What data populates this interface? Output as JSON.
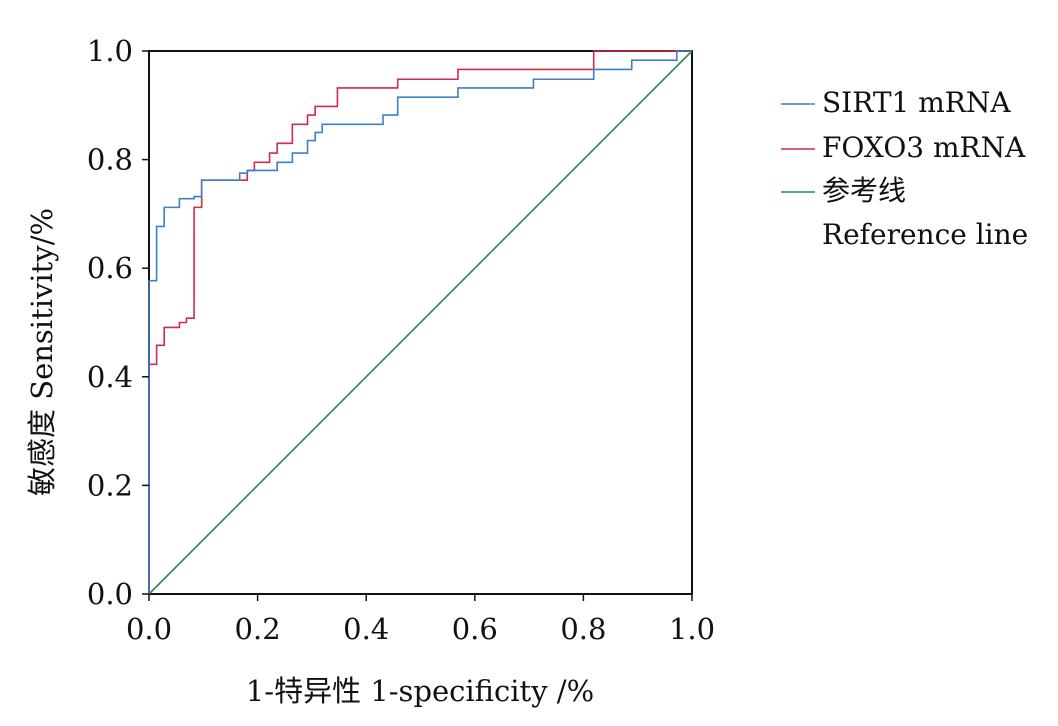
{
  "chart_data": {
    "type": "line",
    "title": "",
    "xlabel": "1-特异性 1-specificity /%",
    "ylabel": "敏感度 Sensitivity/%",
    "xlim": [
      0,
      1
    ],
    "ylim": [
      0,
      1
    ],
    "x_ticks": [
      "0.0",
      "0.2",
      "0.4",
      "0.6",
      "0.8",
      "1.0"
    ],
    "y_ticks": [
      "0.0",
      "0.2",
      "0.4",
      "0.6",
      "0.8",
      "1.0"
    ],
    "grid": false,
    "legend_position": "top-right outside",
    "series": [
      {
        "name": "SIRT1 mRNA",
        "color": "#3d7fc9",
        "points": [
          [
            0,
            0
          ],
          [
            0,
            0.577
          ],
          [
            0.014,
            0.577
          ],
          [
            0.014,
            0.677
          ],
          [
            0.028,
            0.677
          ],
          [
            0.028,
            0.712
          ],
          [
            0.056,
            0.712
          ],
          [
            0.056,
            0.728
          ],
          [
            0.083,
            0.728
          ],
          [
            0.083,
            0.732
          ],
          [
            0.097,
            0.732
          ],
          [
            0.097,
            0.762
          ],
          [
            0.167,
            0.762
          ],
          [
            0.167,
            0.775
          ],
          [
            0.181,
            0.775
          ],
          [
            0.181,
            0.78
          ],
          [
            0.236,
            0.78
          ],
          [
            0.236,
            0.795
          ],
          [
            0.264,
            0.795
          ],
          [
            0.264,
            0.812
          ],
          [
            0.292,
            0.812
          ],
          [
            0.292,
            0.835
          ],
          [
            0.306,
            0.835
          ],
          [
            0.306,
            0.85
          ],
          [
            0.319,
            0.85
          ],
          [
            0.319,
            0.865
          ],
          [
            0.431,
            0.865
          ],
          [
            0.431,
            0.882
          ],
          [
            0.458,
            0.882
          ],
          [
            0.458,
            0.915
          ],
          [
            0.569,
            0.915
          ],
          [
            0.569,
            0.932
          ],
          [
            0.708,
            0.932
          ],
          [
            0.708,
            0.948
          ],
          [
            0.819,
            0.948
          ],
          [
            0.819,
            0.966
          ],
          [
            0.889,
            0.966
          ],
          [
            0.889,
            0.983
          ],
          [
            0.972,
            0.983
          ],
          [
            0.972,
            1.0
          ],
          [
            1.0,
            1.0
          ]
        ]
      },
      {
        "name": "FOXO3 mRNA",
        "color": "#cc2d4c",
        "points": [
          [
            0,
            0
          ],
          [
            0,
            0.423
          ],
          [
            0.014,
            0.423
          ],
          [
            0.014,
            0.458
          ],
          [
            0.028,
            0.458
          ],
          [
            0.028,
            0.491
          ],
          [
            0.056,
            0.491
          ],
          [
            0.056,
            0.5
          ],
          [
            0.069,
            0.5
          ],
          [
            0.069,
            0.508
          ],
          [
            0.083,
            0.508
          ],
          [
            0.083,
            0.712
          ],
          [
            0.097,
            0.712
          ],
          [
            0.097,
            0.762
          ],
          [
            0.181,
            0.762
          ],
          [
            0.181,
            0.78
          ],
          [
            0.194,
            0.78
          ],
          [
            0.194,
            0.795
          ],
          [
            0.222,
            0.795
          ],
          [
            0.222,
            0.812
          ],
          [
            0.236,
            0.812
          ],
          [
            0.236,
            0.83
          ],
          [
            0.264,
            0.83
          ],
          [
            0.264,
            0.865
          ],
          [
            0.292,
            0.865
          ],
          [
            0.292,
            0.882
          ],
          [
            0.306,
            0.882
          ],
          [
            0.306,
            0.898
          ],
          [
            0.347,
            0.898
          ],
          [
            0.347,
            0.932
          ],
          [
            0.458,
            0.932
          ],
          [
            0.458,
            0.948
          ],
          [
            0.569,
            0.948
          ],
          [
            0.569,
            0.966
          ],
          [
            0.819,
            0.966
          ],
          [
            0.819,
            1.0
          ],
          [
            1.0,
            1.0
          ]
        ]
      },
      {
        "name": "参考线",
        "name_line2": "Reference line",
        "color": "#2a8a46",
        "points": [
          [
            0,
            0
          ],
          [
            1,
            1
          ]
        ]
      }
    ]
  }
}
